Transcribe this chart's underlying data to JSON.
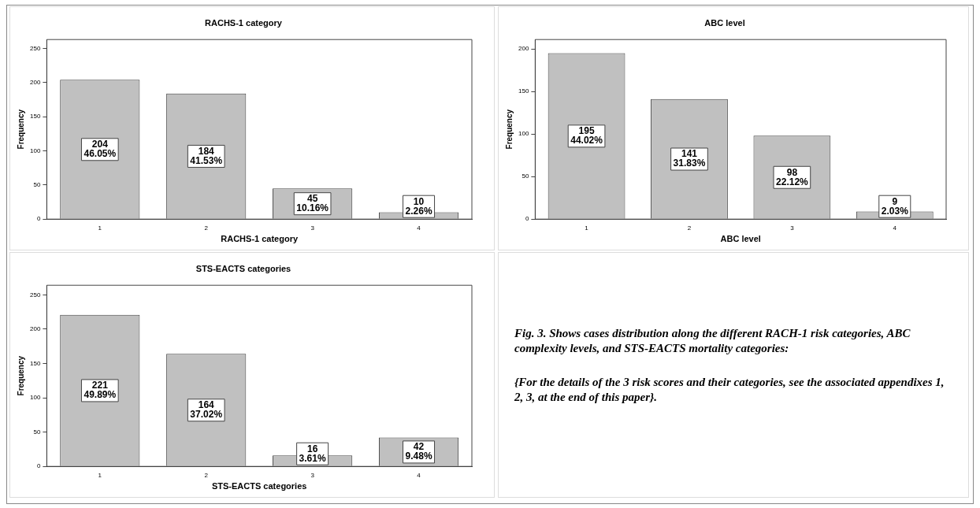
{
  "chart_data": [
    {
      "type": "bar",
      "title": "RACHS-1 category",
      "xlabel": "RACHS-1 category",
      "ylabel": "Frequency",
      "categories": [
        "1",
        "2",
        "3",
        "4"
      ],
      "values": [
        204,
        184,
        45,
        10
      ],
      "color": "#c0c0c0",
      "value_labels": [
        "204\n46.05%",
        "184\n41.53%",
        "45\n10.16%",
        "10\n2.26%"
      ],
      "ylim": [
        0,
        263
      ],
      "yticks": [
        0,
        50,
        100,
        150,
        200,
        250
      ],
      "grid": false
    },
    {
      "type": "bar",
      "title": "ABC level",
      "xlabel": "ABC level",
      "ylabel": "Frequency",
      "categories": [
        "1",
        "2",
        "3",
        "4"
      ],
      "values": [
        195,
        141,
        98,
        9
      ],
      "color": "#c0c0c0",
      "value_labels": [
        "195\n44.02%",
        "141\n31.83%",
        "98\n22.12%",
        "9\n2.03%"
      ],
      "ylim": [
        0,
        211
      ],
      "yticks": [
        0,
        50,
        100,
        150,
        200
      ],
      "grid": false
    },
    {
      "type": "bar",
      "title": "STS-EACTS categories",
      "xlabel": "STS-EACTS categories",
      "ylabel": "Frequency",
      "categories": [
        "1",
        "2",
        "3",
        "4"
      ],
      "values": [
        221,
        164,
        16,
        42
      ],
      "color": "#c0c0c0",
      "value_labels": [
        "221\n49.89%",
        "164\n37.02%",
        "16\n3.61%",
        "42\n9.48%"
      ],
      "ylim": [
        0,
        264
      ],
      "yticks": [
        0,
        50,
        100,
        150,
        200,
        250
      ],
      "grid": false
    },
    {
      "type": "other",
      "annotations": [
        "Fig. 3. Shows cases distribution along the different RACH-1 risk categories, ABC complexity levels, and STS-EACTS mortality categories:",
        "{For the details of the 3 risk scores and their categories, see the associated appendixes 1, 2, 3, at the end of this paper}."
      ]
    }
  ]
}
